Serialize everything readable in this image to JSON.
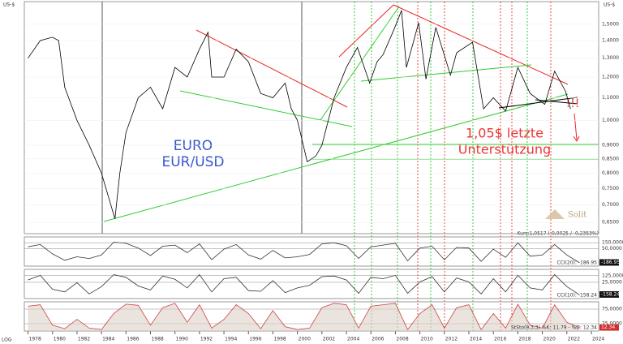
{
  "chart_data": [
    {
      "type": "line",
      "unit_label": "US-$",
      "log_label": "LOG",
      "log_scale": true,
      "annotations": {
        "title1": "EURO",
        "title2": "EUR/USD",
        "note1": "1,05$ letzte",
        "note2": "Unterstützung",
        "alert": "!!!",
        "logo": "Solit"
      },
      "x": [
        1978,
        1979,
        1980,
        1980.5,
        1981,
        1982,
        1983,
        1984,
        1985.1,
        1985.5,
        1986,
        1987,
        1988,
        1989,
        1990,
        1991,
        1992,
        1992.7,
        1993,
        1994,
        1995,
        1996,
        1997,
        1998,
        1999,
        1999.5,
        2000,
        2000.8,
        2001.5,
        2002,
        2003,
        2004,
        2004.9,
        2005.9,
        2006.5,
        2007,
        2007.9,
        2008.5,
        2008.9,
        2009.5,
        2009.9,
        2010.5,
        2011.3,
        2012.5,
        2013,
        2014.3,
        2015.2,
        2016,
        2017,
        2018,
        2019,
        2020.2,
        2021,
        2021.9,
        2022.3
      ],
      "series": [
        {
          "color": "#000000",
          "values": [
            1.3,
            1.4,
            1.42,
            1.4,
            1.15,
            1.0,
            0.9,
            0.8,
            0.66,
            0.8,
            0.95,
            1.1,
            1.15,
            1.05,
            1.25,
            1.2,
            1.35,
            1.45,
            1.2,
            1.2,
            1.35,
            1.28,
            1.12,
            1.1,
            1.17,
            1.05,
            1.0,
            0.84,
            0.86,
            0.9,
            1.1,
            1.25,
            1.36,
            1.17,
            1.28,
            1.32,
            1.47,
            1.59,
            1.25,
            1.4,
            1.51,
            1.19,
            1.48,
            1.21,
            1.33,
            1.39,
            1.05,
            1.1,
            1.04,
            1.25,
            1.12,
            1.07,
            1.23,
            1.13,
            1.05
          ]
        }
      ],
      "xlim": [
        1977.7,
        2024.6
      ],
      "xticks": [
        1978,
        1980,
        1982,
        1984,
        1986,
        1988,
        1990,
        1992,
        1994,
        1996,
        1998,
        2000,
        2002,
        2004,
        2006,
        2008,
        2010,
        2012,
        2014,
        2016,
        2018,
        2020,
        2022,
        2024
      ],
      "ylim": [
        0.62,
        1.65
      ],
      "yticks": [
        {
          "value": 0.65,
          "label": "0,6500"
        },
        {
          "value": 0.7,
          "label": "0,7000"
        },
        {
          "value": 0.75,
          "label": "0,7500"
        },
        {
          "value": 0.8,
          "label": "0,8000"
        },
        {
          "value": 0.85,
          "label": "0,8500"
        },
        {
          "value": 0.9,
          "label": "0,9000"
        },
        {
          "value": 1.0,
          "label": "1,0000"
        },
        {
          "value": 1.1,
          "label": "1,1000"
        },
        {
          "value": 1.2,
          "label": "1,2000"
        },
        {
          "value": 1.3,
          "label": "1,3000"
        },
        {
          "value": 1.4,
          "label": "1,4000"
        },
        {
          "value": 1.5,
          "label": "1,5000"
        }
      ]
    },
    {
      "type": "indicator",
      "label": "Kurs:1,0517 (-0,0025 / -0,2353%)",
      "name_label": "CCI(20): -186.95",
      "last_label": "-186.95",
      "color": "#333333",
      "x": [
        1978,
        1979,
        1980,
        1981,
        1982,
        1983,
        1984,
        1985,
        1986,
        1987,
        1988,
        1989,
        1990,
        1991,
        1992,
        1993,
        1994,
        1995,
        1996,
        1997,
        1998,
        1999,
        2000,
        2001,
        2002,
        2003,
        2004,
        2005,
        2006,
        2007,
        2008,
        2009,
        2010,
        2011,
        2012,
        2013,
        2014,
        2015,
        2016,
        2017,
        2018,
        2019,
        2020,
        2021,
        2022,
        2023
      ],
      "values": [
        80,
        120,
        -40,
        -150,
        -90,
        -120,
        -60,
        160,
        140,
        60,
        -70,
        90,
        110,
        -20,
        130,
        -140,
        40,
        120,
        -60,
        -130,
        20,
        -110,
        -90,
        -50,
        130,
        150,
        100,
        -120,
        80,
        110,
        140,
        -160,
        60,
        90,
        -140,
        70,
        60,
        -170,
        40,
        -100,
        150,
        -80,
        -60,
        120,
        -60,
        -186.95
      ],
      "ylim": [
        -250,
        250
      ],
      "yticks": [
        {
          "value": 150,
          "label": "150,0000"
        },
        {
          "value": 50,
          "label": "50,0000"
        }
      ]
    },
    {
      "type": "indicator",
      "name_label": "CCI(10): -158.24",
      "last_label": "-158.24",
      "color": "#333333",
      "x": [
        1978,
        1979,
        1980,
        1981,
        1982,
        1983,
        1984,
        1985,
        1986,
        1987,
        1988,
        1989,
        1990,
        1991,
        1992,
        1993,
        1994,
        1995,
        1996,
        1997,
        1998,
        1999,
        2000,
        2001,
        2002,
        2003,
        2004,
        2005,
        2006,
        2007,
        2008,
        2009,
        2010,
        2011,
        2012,
        2013,
        2014,
        2015,
        2016,
        2017,
        2018,
        2019,
        2020,
        2021,
        2022,
        2023
      ],
      "values": [
        60,
        130,
        -80,
        -120,
        20,
        -150,
        -40,
        140,
        100,
        -30,
        -90,
        120,
        70,
        -60,
        140,
        -120,
        80,
        100,
        -100,
        -110,
        50,
        -130,
        -60,
        -20,
        110,
        120,
        60,
        -140,
        100,
        80,
        130,
        -140,
        30,
        110,
        -120,
        90,
        30,
        -150,
        80,
        -120,
        130,
        -60,
        -90,
        140,
        -40,
        -158.24
      ],
      "ylim": [
        -220,
        220
      ],
      "yticks": [
        {
          "value": 125,
          "label": "125,0000"
        },
        {
          "value": 25,
          "label": "25,0000"
        }
      ]
    },
    {
      "type": "stochastic",
      "name_label": "StSto(9,3,3) %K: 11.79 - %D: 12.34",
      "last_label": "12.34",
      "color": "#d04040",
      "x": [
        1978,
        1979,
        1980,
        1981,
        1982,
        1983,
        1984,
        1985,
        1986,
        1987,
        1988,
        1989,
        1990,
        1991,
        1992,
        1993,
        1994,
        1995,
        1996,
        1997,
        1998,
        1999,
        2000,
        2001,
        2002,
        2003,
        2004,
        2005,
        2006,
        2007,
        2008,
        2009,
        2010,
        2011,
        2012,
        2013,
        2014,
        2015,
        2016,
        2017,
        2018,
        2019,
        2020,
        2021,
        2022,
        2023
      ],
      "values": [
        85,
        90,
        20,
        8,
        40,
        10,
        5,
        60,
        92,
        88,
        20,
        80,
        95,
        30,
        90,
        10,
        40,
        90,
        60,
        8,
        70,
        15,
        5,
        10,
        80,
        95,
        90,
        10,
        85,
        90,
        95,
        5,
        60,
        90,
        10,
        80,
        90,
        5,
        60,
        10,
        92,
        20,
        10,
        90,
        30,
        12.34
      ],
      "ylim": [
        0,
        100
      ],
      "yticks": [
        {
          "value": 75,
          "label": "75,0000"
        },
        {
          "value": 25,
          "label": "25,0000"
        }
      ]
    }
  ]
}
